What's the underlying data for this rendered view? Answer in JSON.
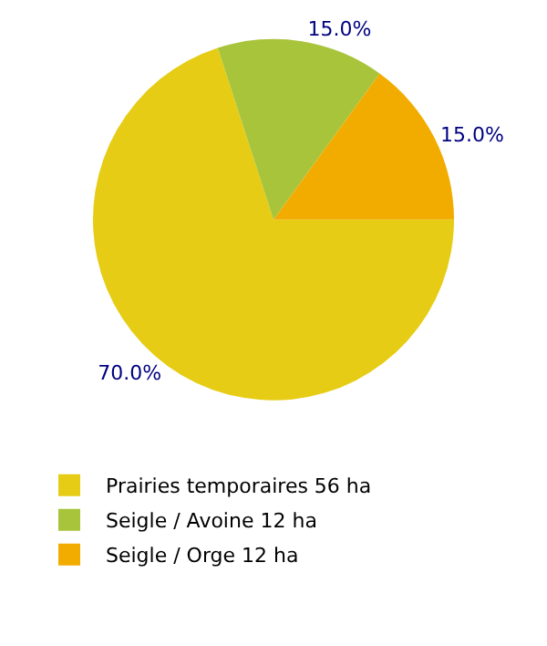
{
  "chart_data": {
    "type": "pie",
    "categories": [
      "Prairies temporaires 56 ha",
      "Seigle / Avoine 12 ha",
      "Seigle / Orge 12 ha"
    ],
    "values": [
      70,
      15,
      15
    ],
    "value_labels": [
      "70.0%",
      "15.0%",
      "15.0%"
    ],
    "colors": [
      "#e6cc14",
      "#a8c43a",
      "#f2ac00"
    ],
    "legend": "bottom"
  }
}
